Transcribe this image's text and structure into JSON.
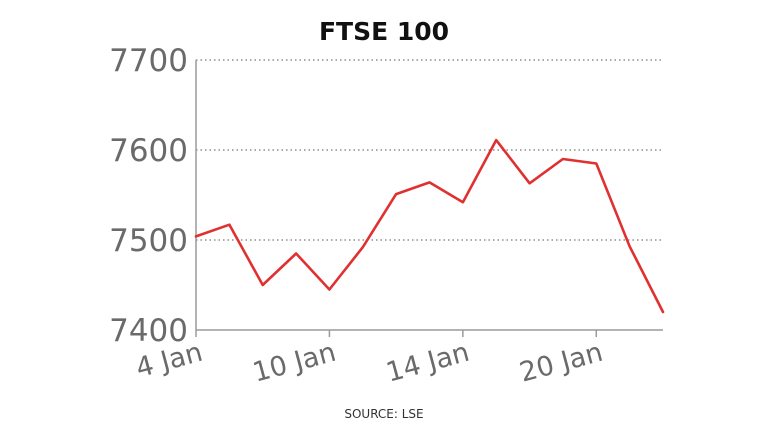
{
  "chart_data": {
    "type": "line",
    "title": "FTSE 100",
    "source": "SOURCE: LSE",
    "xlabel": "",
    "ylabel": "",
    "ylim": [
      7400,
      7700
    ],
    "yticks": [
      7400,
      7500,
      7600,
      7700
    ],
    "xticks": [
      {
        "index": 0,
        "label": "4 Jan"
      },
      {
        "index": 4,
        "label": "10 Jan"
      },
      {
        "index": 8,
        "label": "14 Jan"
      },
      {
        "index": 12,
        "label": "20 Jan"
      }
    ],
    "grid": "horizontal-dotted",
    "x": [
      0,
      1,
      2,
      3,
      4,
      5,
      6,
      7,
      8,
      9,
      10,
      11,
      12,
      13,
      14
    ],
    "series": [
      {
        "color": "#e03030",
        "values": [
          7504,
          7517,
          7450,
          7485,
          7445,
          7492,
          7551,
          7564,
          7542,
          7611,
          7563,
          7590,
          7585,
          7493,
          7420
        ]
      }
    ]
  }
}
